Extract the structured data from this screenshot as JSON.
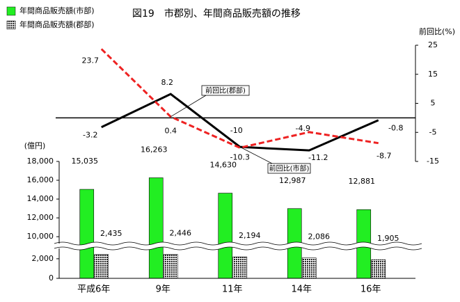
{
  "chart_data": {
    "type": "bar",
    "title": "図19　市郡別、年間商品販売額の推移",
    "y_label": "(億円)",
    "y2_label": "前回比(%)",
    "categories": [
      "平成6年",
      "9年",
      "11年",
      "14年",
      "16年"
    ],
    "series": [
      {
        "name": "年間商品販売額(市部)",
        "type": "bar",
        "color": "#22ee22",
        "values": [
          15035,
          16263,
          14630,
          12987,
          12881
        ],
        "value_labels": [
          "15,035",
          "16,263",
          "14,630",
          "12,987",
          "12,881"
        ]
      },
      {
        "name": "年間商品販売額(郡部)",
        "type": "bar",
        "color": "#222222",
        "pattern": "dots",
        "values": [
          2435,
          2446,
          2194,
          2086,
          1905
        ],
        "value_labels": [
          "2,435",
          "2,446",
          "2,194",
          "2,086",
          "1,905"
        ]
      },
      {
        "name": "前回比(市部)",
        "type": "line",
        "axis": "y2",
        "color": "#000000",
        "dashed": false,
        "values": [
          -3.2,
          8.2,
          -10,
          -11.2,
          -0.8
        ]
      },
      {
        "name": "前回比(郡部)",
        "type": "line",
        "axis": "y2",
        "color": "#ee2222",
        "dashed": true,
        "values": [
          23.7,
          0.4,
          -10.3,
          -4.9,
          -8.7
        ]
      }
    ],
    "ylim": [
      0,
      18000
    ],
    "ybreak": [
      3200,
      8900
    ],
    "yticks": [
      0,
      {
        "value": 2000,
        "label": "2,000"
      },
      {
        "value": 10000,
        "label": "10,000"
      },
      {
        "value": 12000,
        "label": "12,000"
      },
      {
        "value": 14000,
        "label": "14,000"
      },
      {
        "value": 16000,
        "label": "16,000"
      },
      {
        "value": 18000,
        "label": "18,000"
      }
    ],
    "y2lim": [
      -15,
      25
    ],
    "y2ticks": [
      -15,
      -5,
      5,
      15,
      25
    ]
  }
}
